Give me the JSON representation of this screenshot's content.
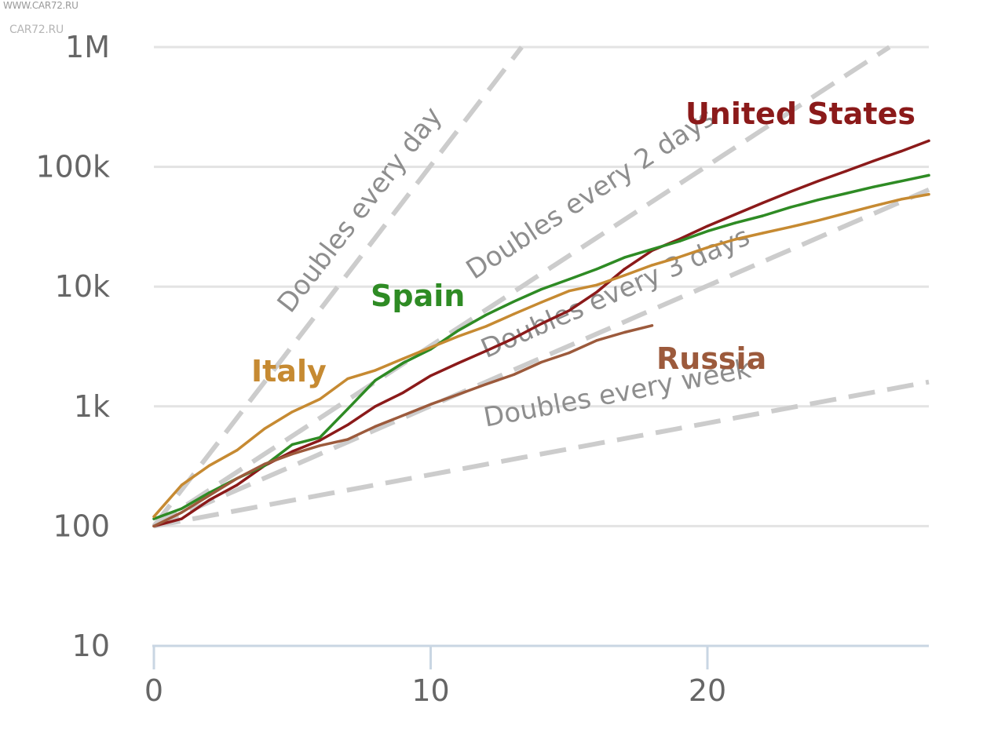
{
  "watermark": {
    "url": "WWW.CAR72.RU",
    "brand": "CAR72.RU"
  },
  "chart_data": {
    "type": "line",
    "title": "",
    "xlabel": "",
    "ylabel": "",
    "xlim": [
      0,
      28
    ],
    "ylim": [
      10,
      1000000
    ],
    "y_scale": "log",
    "grid": true,
    "x_ticks": [
      {
        "value": 0,
        "label": "0"
      },
      {
        "value": 10,
        "label": "10"
      },
      {
        "value": 20,
        "label": "20"
      }
    ],
    "y_ticks": [
      {
        "value": 10,
        "label": "10"
      },
      {
        "value": 100,
        "label": "100"
      },
      {
        "value": 1000,
        "label": "1k"
      },
      {
        "value": 10000,
        "label": "10k"
      },
      {
        "value": 100000,
        "label": "100k"
      },
      {
        "value": 1000000,
        "label": "1M"
      }
    ],
    "guides": [
      {
        "label": "Doubles every day",
        "doubling_days": 1
      },
      {
        "label": "Doubles every 2 days",
        "doubling_days": 2
      },
      {
        "label": "Doubles every 3 days",
        "doubling_days": 3
      },
      {
        "label": "Doubles every week",
        "doubling_days": 7
      }
    ],
    "guide_color": "#cccccc",
    "series": [
      {
        "name": "United States",
        "color": "#8b1a1a",
        "x": [
          0,
          1,
          2,
          3,
          4,
          5,
          6,
          7,
          8,
          9,
          10,
          11,
          12,
          13,
          14,
          15,
          16,
          17,
          18,
          19,
          20,
          21,
          22,
          23,
          24,
          25,
          26,
          27,
          28
        ],
        "y": [
          100,
          115,
          165,
          220,
          320,
          420,
          520,
          700,
          1000,
          1300,
          1800,
          2300,
          2900,
          3700,
          4900,
          6300,
          9000,
          14000,
          20000,
          25000,
          32000,
          40000,
          50000,
          62000,
          76000,
          92000,
          112000,
          135000,
          165000
        ]
      },
      {
        "name": "Spain",
        "color": "#2e8b24",
        "x": [
          0,
          1,
          2,
          3,
          4,
          5,
          6,
          7,
          8,
          9,
          10,
          11,
          12,
          13,
          14,
          15,
          16,
          17,
          18,
          19,
          20,
          21,
          22,
          23,
          24,
          25,
          26,
          27,
          28
        ],
        "y": [
          115,
          140,
          190,
          250,
          320,
          480,
          550,
          950,
          1650,
          2300,
          3000,
          4300,
          5800,
          7500,
          9500,
          11500,
          14000,
          17500,
          20500,
          24000,
          29000,
          34000,
          39000,
          46000,
          53000,
          60000,
          68000,
          76000,
          85000
        ]
      },
      {
        "name": "Italy",
        "color": "#c68a32",
        "x": [
          0,
          1,
          2,
          3,
          4,
          5,
          6,
          7,
          8,
          9,
          10,
          11,
          12,
          13,
          14,
          15,
          16,
          17,
          18,
          19,
          20,
          21,
          22,
          23,
          24,
          25,
          26,
          27,
          28
        ],
        "y": [
          120,
          220,
          320,
          430,
          650,
          900,
          1150,
          1700,
          2000,
          2500,
          3100,
          3850,
          4650,
          5900,
          7400,
          9200,
          10300,
          12400,
          15100,
          17700,
          21200,
          24800,
          28000,
          31500,
          35700,
          41000,
          47000,
          53600,
          59000
        ]
      },
      {
        "name": "Russia",
        "color": "#9c5a3c",
        "x": [
          0,
          1,
          2,
          3,
          4,
          5,
          6,
          7,
          8,
          9,
          10,
          11,
          12,
          13,
          14,
          15,
          16,
          17,
          18
        ],
        "y": [
          100,
          130,
          180,
          250,
          330,
          400,
          470,
          530,
          680,
          840,
          1040,
          1260,
          1530,
          1840,
          2340,
          2800,
          3550,
          4150,
          4730
        ]
      }
    ]
  }
}
